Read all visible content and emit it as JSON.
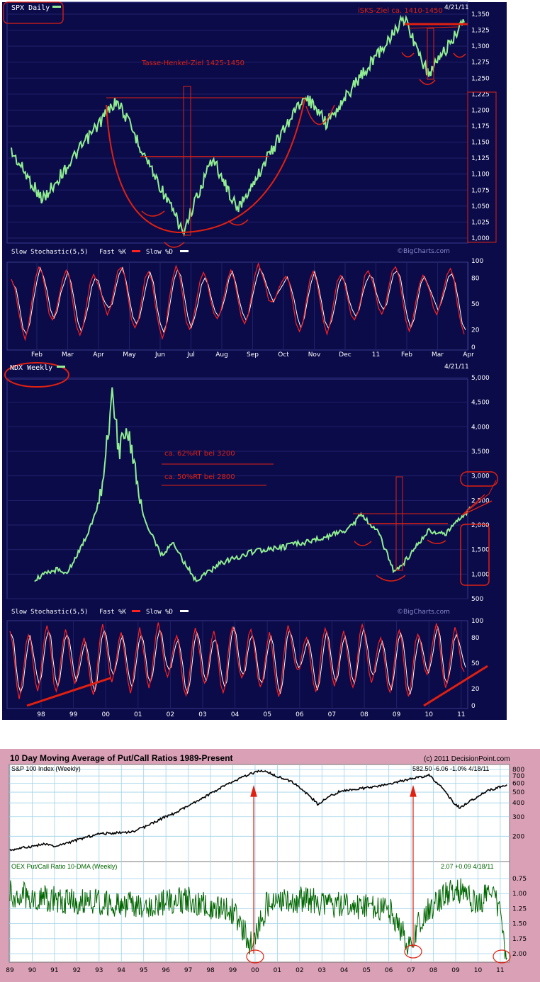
{
  "panels": {
    "spx": {
      "title": "SPX Daily",
      "date": "4/21/11",
      "annotations": [
        "iSKS-Ziel ca. 1410-1450",
        "Tasse-Henkel-Ziel 1425-1450"
      ],
      "stoch_title": "Slow Stochastic(5,5)",
      "fast_label": "Fast %K",
      "slow_label": "Slow %D",
      "watermark": "©BigCharts.com"
    },
    "ndx": {
      "title": "NDX Weekly",
      "date": "4/21/11",
      "annotations": [
        "ca. 62%RT bei 3200",
        "ca. 50%RT bei 2800"
      ],
      "stoch_title": "Slow Stochastic(5,5)",
      "fast_label": "Fast %K",
      "slow_label": "Slow %D",
      "watermark": "©BigCharts.com"
    },
    "oex": {
      "title": "10 Day Moving Average of Put/Call Ratios 1989-Present",
      "copyright": "(c) 2011 DecisionPoint.com",
      "top_label": "S&P 100 Index (Weekly)",
      "top_stats": "582.50  -6.06  -1.0%  4/18/11",
      "bottom_label": "OEX Put/Call Ratio 10-DMA (Weekly)",
      "bottom_stats": "2.07  +0.09  4/18/11"
    }
  },
  "colors": {
    "navy": "#0b0b4a",
    "price_green": "#90ee90",
    "annotation_red": "#e02010",
    "stoch_fast": "#ff2020",
    "stoch_slow": "#ffffff",
    "pink": "#d9a0b6",
    "dp_green": "#006600"
  },
  "chart_data": [
    {
      "type": "line",
      "title": "SPX Daily",
      "x_ticks": [
        "Feb",
        "Mar",
        "Apr",
        "May",
        "Jun",
        "Jul",
        "Aug",
        "Sep",
        "Oct",
        "Nov",
        "Dec",
        "11",
        "Feb",
        "Mar",
        "Apr"
      ],
      "y_ticks": [
        "1,350",
        "1,325",
        "1,300",
        "1,275",
        "1,250",
        "1,225",
        "1,200",
        "1,175",
        "1,150",
        "1,125",
        "1,100",
        "1,075",
        "1,050",
        "1,025",
        "1,000"
      ],
      "ylim": [
        1000,
        1350
      ],
      "series": [
        {
          "name": "SPX",
          "x": [
            "Jan 10",
            "Feb 8",
            "Apr 23",
            "Jul 2",
            "Aug 9",
            "Aug 27",
            "Nov 5",
            "Nov 16",
            "Feb 18",
            "Mar 16",
            "Apr 21"
          ],
          "values": [
            1135,
            1060,
            1217,
            1010,
            1125,
            1045,
            1225,
            1180,
            1343,
            1255,
            1337
          ]
        }
      ]
    },
    {
      "type": "line",
      "title": "Slow Stochastic(5,5)",
      "y_ticks": [
        "100",
        "80",
        "50",
        "20",
        "0"
      ],
      "ylim": [
        0,
        100
      ],
      "series": [
        {
          "name": "Fast %K",
          "values": [
            80,
            10,
            95,
            30,
            90,
            15,
            85,
            40,
            95,
            20,
            90,
            10,
            95,
            20,
            85,
            30,
            90,
            25,
            95,
            50,
            85,
            20,
            90,
            15,
            85,
            30,
            90,
            40,
            95,
            20,
            85,
            40,
            90,
            15
          ]
        },
        {
          "name": "Slow %D",
          "values": [
            75,
            15,
            90,
            35,
            85,
            20,
            80,
            45,
            90,
            25,
            85,
            15,
            90,
            25,
            80,
            35,
            85,
            30,
            90,
            55,
            80,
            25,
            85,
            20,
            80,
            35,
            85,
            45,
            90,
            25,
            80,
            45,
            85,
            20
          ]
        }
      ]
    },
    {
      "type": "line",
      "title": "NDX Weekly",
      "x_ticks": [
        "98",
        "99",
        "00",
        "01",
        "02",
        "03",
        "04",
        "05",
        "06",
        "07",
        "08",
        "09",
        "10",
        "11"
      ],
      "y_ticks": [
        "5,000",
        "4,500",
        "4,000",
        "3,500",
        "3,000",
        "2,500",
        "2,000",
        "1,500",
        "1,000",
        "500"
      ],
      "ylim": [
        500,
        5000
      ],
      "series": [
        {
          "name": "NDX",
          "x": [
            1997.8,
            1998.5,
            1998.8,
            1999.5,
            1999.9,
            2000.2,
            2000.4,
            2000.7,
            2001.2,
            2001.7,
            2002.1,
            2002.8,
            2003.5,
            2004.5,
            2005.5,
            2006.5,
            2007.5,
            2007.9,
            2008.4,
            2008.9,
            2009.2,
            2010.0,
            2010.5,
            2011.3
          ],
          "values": [
            900,
            1100,
            1000,
            1900,
            2700,
            4700,
            3500,
            3900,
            2100,
            1400,
            1600,
            850,
            1200,
            1450,
            1550,
            1700,
            1900,
            2200,
            1900,
            1100,
            1200,
            1900,
            1800,
            2350
          ]
        }
      ]
    },
    {
      "type": "line",
      "title": "Slow Stochastic(5,5)",
      "y_ticks": [
        "100",
        "80",
        "50",
        "20",
        "0"
      ],
      "ylim": [
        0,
        100
      ],
      "series": [
        {
          "name": "Fast %K",
          "values": [
            90,
            10,
            85,
            20,
            95,
            15,
            90,
            25,
            80,
            10,
            95,
            30,
            85,
            15,
            90,
            20,
            95,
            35,
            80,
            10,
            90,
            25,
            85,
            15,
            95,
            30,
            90,
            20,
            85,
            10,
            95,
            40,
            80,
            15,
            90,
            25,
            85,
            20,
            95,
            30,
            80,
            15,
            90,
            10,
            85,
            35,
            95,
            20,
            90,
            40
          ]
        },
        {
          "name": "Slow %D",
          "values": [
            85,
            15,
            80,
            25,
            90,
            20,
            85,
            30,
            75,
            15,
            90,
            35,
            80,
            20,
            85,
            25,
            90,
            40,
            75,
            15,
            85,
            30,
            80,
            20,
            90,
            35,
            85,
            25,
            80,
            15,
            90,
            45,
            75,
            20,
            85,
            30,
            80,
            25,
            90,
            35,
            75,
            20,
            85,
            15,
            80,
            40,
            90,
            25,
            85,
            45
          ]
        }
      ]
    },
    {
      "type": "line",
      "title": "S&P 100 Index (Weekly)",
      "x_ticks": [
        "89",
        "90",
        "91",
        "92",
        "93",
        "94",
        "95",
        "96",
        "97",
        "98",
        "99",
        "00",
        "01",
        "02",
        "03",
        "04",
        "05",
        "06",
        "07",
        "08",
        "09",
        "10",
        "11"
      ],
      "y_ticks": [
        "800",
        "700",
        "600",
        "500",
        "400",
        "300",
        "200"
      ],
      "series": [
        {
          "name": "S&P 100",
          "x": [
            1989.0,
            1990.6,
            1991.0,
            1993.0,
            1994.5,
            1995.0,
            1996.5,
            1997.5,
            1998.7,
            2000.1,
            2000.5,
            2001.7,
            2002.8,
            2003.8,
            2005.5,
            2007.8,
            2008.9,
            2009.2,
            2010.5,
            2011.3
          ],
          "values": [
            150,
            170,
            160,
            210,
            220,
            240,
            330,
            420,
            580,
            770,
            760,
            610,
            390,
            510,
            560,
            710,
            400,
            360,
            520,
            583
          ]
        }
      ]
    },
    {
      "type": "line",
      "title": "OEX Put/Call Ratio 10-DMA (Weekly)",
      "y_ticks": [
        "0.75",
        "1.00",
        "1.25",
        "1.50",
        "1.75",
        "2.00"
      ],
      "note": "inverted scale",
      "series": [
        {
          "name": "OEX P/C 10-DMA",
          "x": [
            1989,
            1991,
            1993,
            1995,
            1997,
            1999,
            1999.9,
            2000.5,
            2002,
            2004,
            2006,
            2006.9,
            2007.5,
            2008.5,
            2009,
            2010,
            2010.7,
            2011.3
          ],
          "values": [
            1.0,
            1.1,
            1.15,
            1.2,
            1.1,
            1.3,
            1.9,
            1.2,
            1.1,
            1.2,
            1.25,
            1.85,
            1.4,
            1.0,
            0.9,
            1.2,
            0.8,
            2.07
          ]
        }
      ]
    }
  ]
}
